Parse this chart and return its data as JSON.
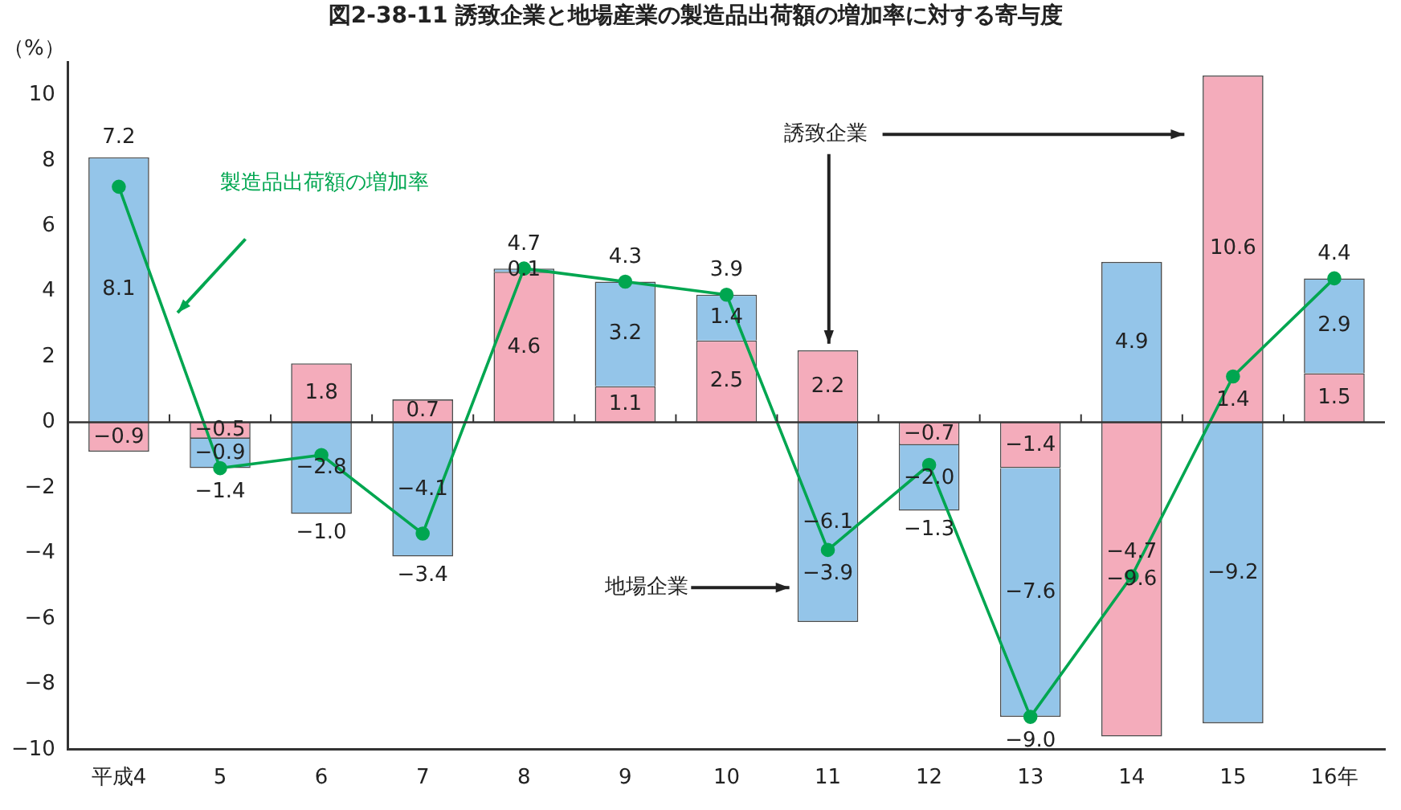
{
  "chart_data": {
    "type": "bar",
    "title": "図2-38-11 誘致企業と地場産業の製造品出荷額の増加率に対する寄与度",
    "ylabel": "（%）",
    "categories": [
      "平成4",
      "5",
      "6",
      "7",
      "8",
      "9",
      "10",
      "11",
      "12",
      "13",
      "14",
      "15",
      "16年"
    ],
    "stacked": true,
    "ylim": [
      -10,
      11
    ],
    "yticks": [
      -10,
      -8,
      -6,
      -4,
      -2,
      0,
      2,
      4,
      6,
      8,
      10
    ],
    "grid": false,
    "legend": false,
    "ref_lines": [
      {
        "axis": "y",
        "value": 0,
        "color": "#333333"
      }
    ],
    "series": [
      {
        "name": "誘致企業",
        "color": "#f4acbb",
        "values": [
          -0.9,
          -0.5,
          1.8,
          0.7,
          4.6,
          1.1,
          2.5,
          2.2,
          -0.7,
          -1.4,
          -9.6,
          10.6,
          1.5
        ],
        "value_labels": [
          "−0.9",
          "−0.5",
          "1.8",
          "0.7",
          "4.6",
          "1.1",
          "2.5",
          "2.2",
          "−0.7",
          "−1.4",
          "−9.6",
          "10.6",
          "1.5"
        ]
      },
      {
        "name": "地場企業",
        "color": "#94c5e9",
        "values": [
          8.1,
          -0.9,
          -2.8,
          -4.1,
          0.1,
          3.2,
          1.4,
          -6.1,
          -2.0,
          -7.6,
          4.9,
          -9.2,
          2.9
        ],
        "value_labels": [
          "8.1",
          "−0.9",
          "−2.8",
          "−4.1",
          "0.1",
          "3.2",
          "1.4",
          "−6.1",
          "−2.0",
          "−7.6",
          "4.9",
          "−9.2",
          "2.9"
        ]
      },
      {
        "name": "製造品出荷額の増加率",
        "type": "line",
        "color": "#00a650",
        "marker": "circle",
        "values": [
          7.2,
          -1.4,
          -1.0,
          -3.4,
          4.7,
          4.3,
          3.9,
          -3.9,
          -1.3,
          -9.0,
          -4.7,
          1.4,
          4.4
        ],
        "value_labels": [
          "7.2",
          "−1.4",
          "−1.0",
          "−3.4",
          "4.7",
          "4.3",
          "3.9",
          "−3.9",
          "−1.3",
          "−9.0",
          "−4.7",
          "1.4",
          "4.4"
        ]
      }
    ]
  }
}
